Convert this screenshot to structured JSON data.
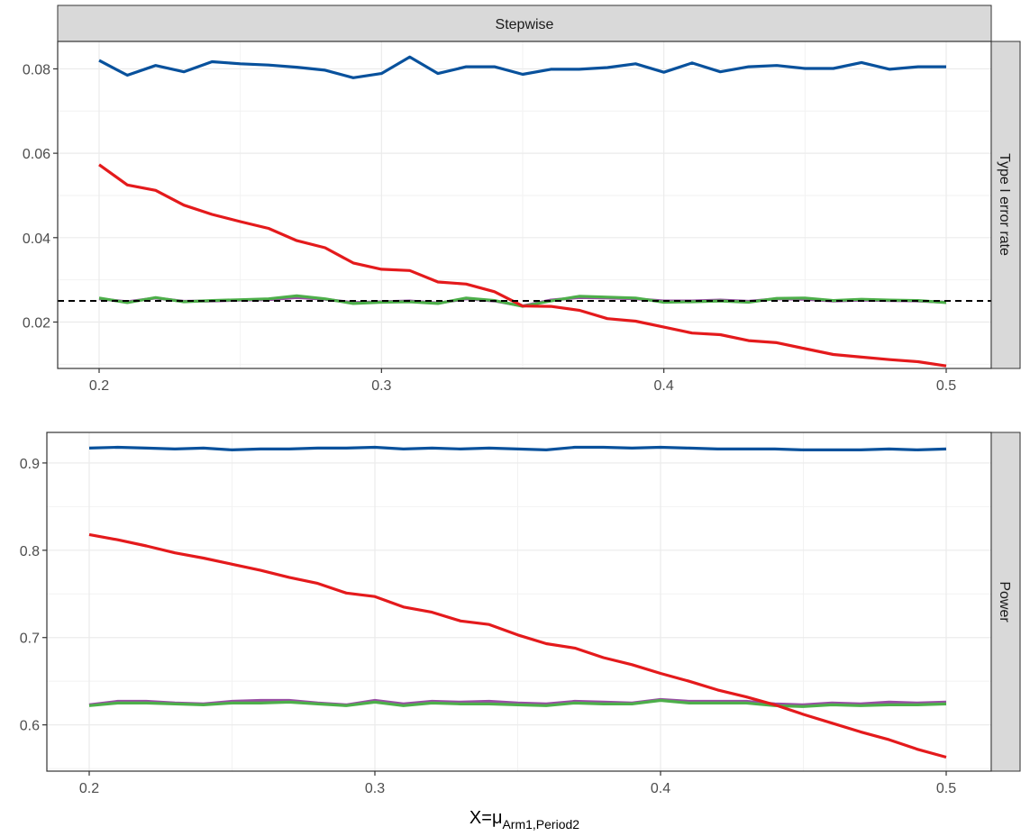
{
  "chart_data": [
    {
      "type": "line",
      "panel": "top",
      "strip_top": "Stepwise",
      "strip_right": "Type I error rate",
      "xlim": [
        0.2,
        0.5
      ],
      "ylim": [
        0.009,
        0.0865
      ],
      "x_ticks": [
        0.2,
        0.3,
        0.4,
        0.5
      ],
      "x_tick_labels": [
        "0.2",
        "0.3",
        "0.4",
        "0.5"
      ],
      "y_ticks": [
        0.02,
        0.04,
        0.06,
        0.08
      ],
      "y_tick_labels": [
        "0.02",
        "0.04",
        "0.06",
        "0.08"
      ],
      "grid": true,
      "reference_line": {
        "y": 0.025,
        "style": "dashed",
        "color": "#000000"
      },
      "x": [
        0.2,
        0.21,
        0.22,
        0.23,
        0.24,
        0.25,
        0.26,
        0.27,
        0.28,
        0.29,
        0.3,
        0.31,
        0.32,
        0.33,
        0.34,
        0.35,
        0.36,
        0.37,
        0.38,
        0.39,
        0.4,
        0.41,
        0.42,
        0.43,
        0.44,
        0.45,
        0.46,
        0.47,
        0.48,
        0.49,
        0.5
      ],
      "series": [
        {
          "color": "#984ea3",
          "values": [
            0.0255,
            0.0248,
            0.0257,
            0.0249,
            0.025,
            0.0252,
            0.0253,
            0.0258,
            0.0254,
            0.0246,
            0.0248,
            0.025,
            0.0245,
            0.0255,
            0.025,
            0.0238,
            0.0252,
            0.0258,
            0.0257,
            0.0255,
            0.025,
            0.025,
            0.0252,
            0.0249,
            0.0255,
            0.0254,
            0.025,
            0.0252,
            0.0251,
            0.025,
            0.0247
          ]
        },
        {
          "color": "#4daf4a",
          "values": [
            0.0257,
            0.0246,
            0.0258,
            0.0248,
            0.0251,
            0.0253,
            0.0255,
            0.0262,
            0.0255,
            0.0244,
            0.0247,
            0.0248,
            0.0244,
            0.0257,
            0.0251,
            0.0237,
            0.025,
            0.0261,
            0.0259,
            0.0257,
            0.0247,
            0.0248,
            0.025,
            0.0247,
            0.0256,
            0.0257,
            0.0251,
            0.0254,
            0.0252,
            0.0251,
            0.0246
          ]
        },
        {
          "color": "#e41a1c",
          "values": [
            0.0573,
            0.0525,
            0.0512,
            0.0477,
            0.0455,
            0.0438,
            0.0422,
            0.0393,
            0.0376,
            0.034,
            0.0325,
            0.0322,
            0.0295,
            0.029,
            0.0272,
            0.0238,
            0.0237,
            0.0228,
            0.0208,
            0.0202,
            0.0188,
            0.0174,
            0.017,
            0.0156,
            0.0151,
            0.0137,
            0.0123,
            0.0117,
            0.0111,
            0.0106,
            0.0096
          ]
        },
        {
          "color": "#08519c",
          "values": [
            0.082,
            0.0785,
            0.0808,
            0.0793,
            0.0817,
            0.0812,
            0.0809,
            0.0804,
            0.0797,
            0.0779,
            0.0789,
            0.0828,
            0.0789,
            0.0805,
            0.0805,
            0.0787,
            0.0799,
            0.0799,
            0.0803,
            0.0812,
            0.0792,
            0.0814,
            0.0793,
            0.0805,
            0.0808,
            0.0801,
            0.0801,
            0.0815,
            0.0799,
            0.0805,
            0.0805
          ]
        }
      ]
    },
    {
      "type": "line",
      "panel": "bottom",
      "strip_right": "Power",
      "xlabel_main": "X=μ",
      "xlabel_sub": "Arm1,Period2",
      "xlim": [
        0.2,
        0.5
      ],
      "ylim": [
        0.547,
        0.935
      ],
      "x_ticks": [
        0.2,
        0.3,
        0.4,
        0.5
      ],
      "x_tick_labels": [
        "0.2",
        "0.3",
        "0.4",
        "0.5"
      ],
      "y_ticks": [
        0.6,
        0.7,
        0.8,
        0.9
      ],
      "y_tick_labels": [
        "0.6",
        "0.7",
        "0.8",
        "0.9"
      ],
      "grid": true,
      "x": [
        0.2,
        0.21,
        0.22,
        0.23,
        0.24,
        0.25,
        0.26,
        0.27,
        0.28,
        0.29,
        0.3,
        0.31,
        0.32,
        0.33,
        0.34,
        0.35,
        0.36,
        0.37,
        0.38,
        0.39,
        0.4,
        0.41,
        0.42,
        0.43,
        0.44,
        0.45,
        0.46,
        0.47,
        0.48,
        0.49,
        0.5
      ],
      "series": [
        {
          "color": "#984ea3",
          "values": [
            0.623,
            0.627,
            0.627,
            0.625,
            0.624,
            0.627,
            0.628,
            0.628,
            0.625,
            0.623,
            0.628,
            0.624,
            0.627,
            0.626,
            0.627,
            0.625,
            0.624,
            0.627,
            0.626,
            0.625,
            0.629,
            0.627,
            0.627,
            0.627,
            0.624,
            0.623,
            0.625,
            0.624,
            0.626,
            0.625,
            0.626
          ]
        },
        {
          "color": "#4daf4a",
          "values": [
            0.622,
            0.625,
            0.625,
            0.624,
            0.623,
            0.625,
            0.625,
            0.626,
            0.624,
            0.622,
            0.626,
            0.622,
            0.625,
            0.624,
            0.624,
            0.623,
            0.622,
            0.625,
            0.624,
            0.624,
            0.628,
            0.625,
            0.625,
            0.625,
            0.622,
            0.621,
            0.623,
            0.622,
            0.623,
            0.623,
            0.624
          ]
        },
        {
          "color": "#e41a1c",
          "values": [
            0.818,
            0.812,
            0.805,
            0.797,
            0.791,
            0.784,
            0.777,
            0.769,
            0.762,
            0.751,
            0.747,
            0.735,
            0.729,
            0.719,
            0.715,
            0.703,
            0.693,
            0.688,
            0.677,
            0.669,
            0.659,
            0.65,
            0.64,
            0.632,
            0.623,
            0.612,
            0.602,
            0.592,
            0.583,
            0.572,
            0.563
          ]
        },
        {
          "color": "#08519c",
          "values": [
            0.917,
            0.918,
            0.917,
            0.916,
            0.917,
            0.915,
            0.916,
            0.916,
            0.917,
            0.917,
            0.918,
            0.916,
            0.917,
            0.916,
            0.917,
            0.916,
            0.915,
            0.918,
            0.918,
            0.917,
            0.918,
            0.917,
            0.916,
            0.916,
            0.916,
            0.915,
            0.915,
            0.915,
            0.916,
            0.915,
            0.916
          ]
        }
      ]
    }
  ]
}
